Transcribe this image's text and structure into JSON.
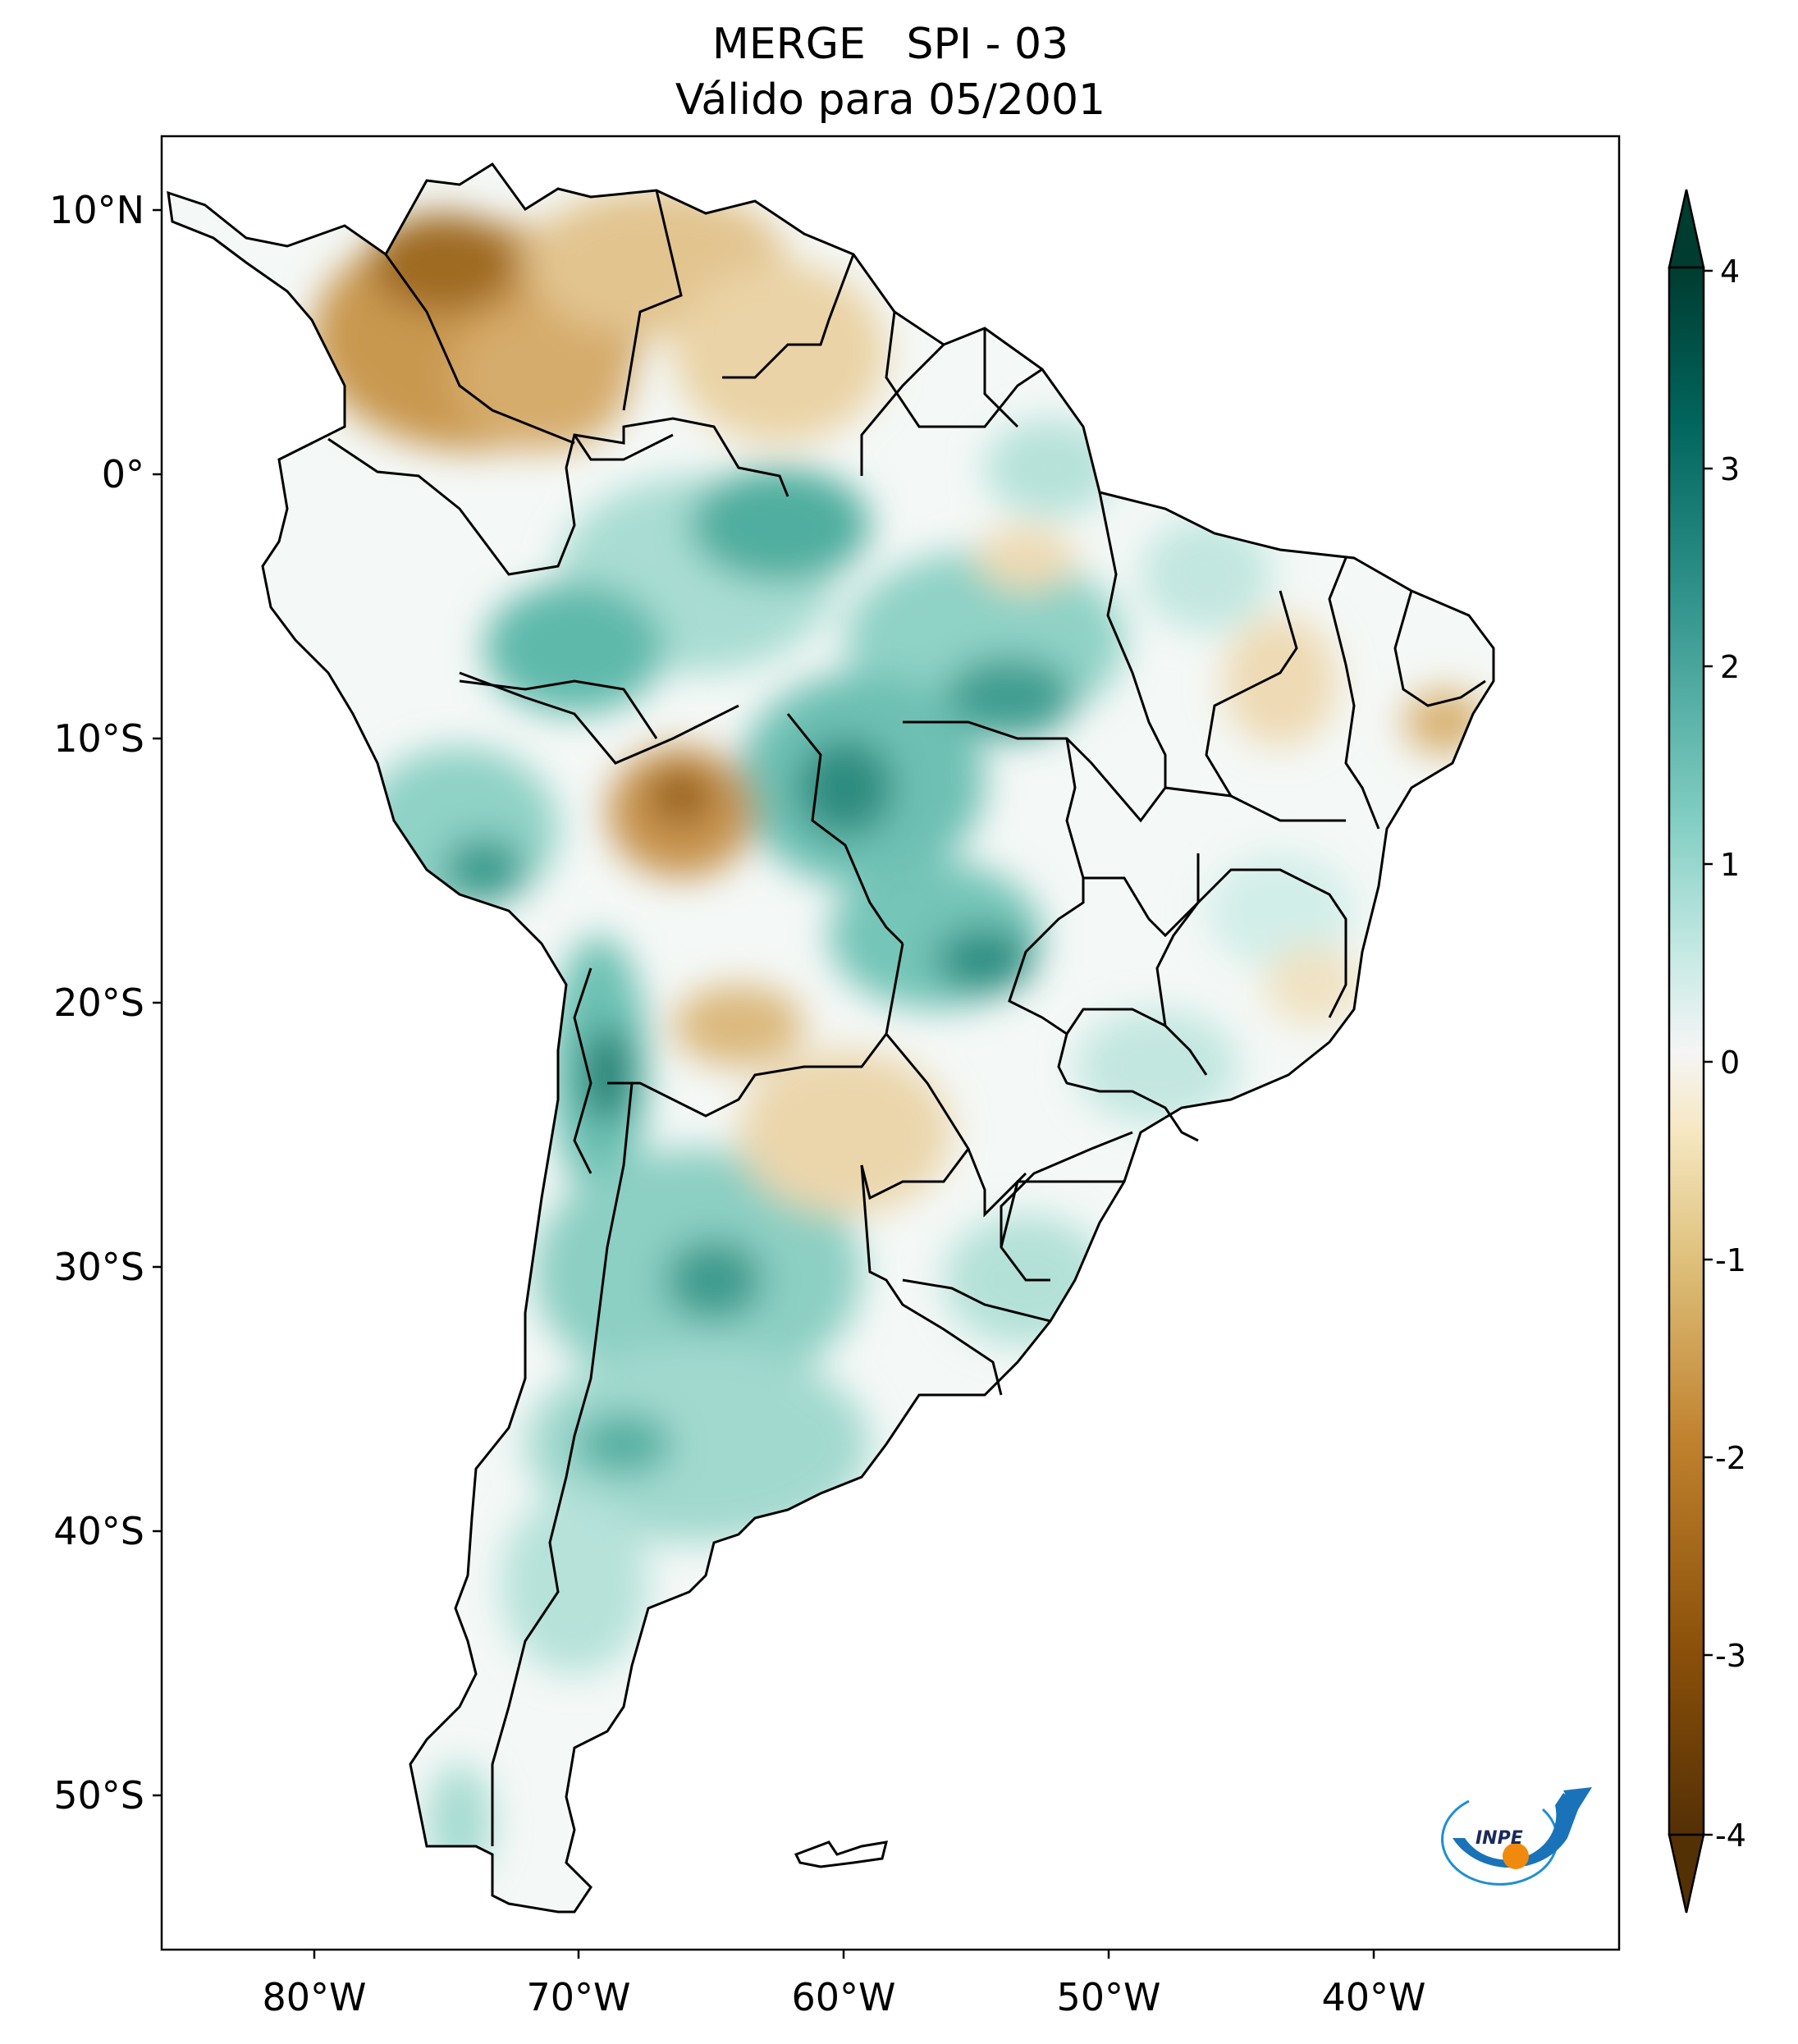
{
  "title": {
    "line1": "MERGE   SPI - 03",
    "line2": "Válido para 05/2001"
  },
  "map": {
    "lat_labels": [
      "10°N",
      "0°",
      "10°S",
      "20°S",
      "30°S",
      "40°S",
      "50°S"
    ],
    "lon_labels": [
      "80°W",
      "70°W",
      "60°W",
      "50°W",
      "40°W"
    ],
    "colors": {
      "dry_strong": "#7a4a10",
      "dry_mid": "#c89a55",
      "dry_light": "#eddcb4",
      "neutral": "#f6f6f4",
      "wet_light": "#d6efe9",
      "wet_mid": "#6fc0b2",
      "wet_strong": "#1b7b70",
      "border": "#000000"
    }
  },
  "colorbar": {
    "tick_labels": [
      "4",
      "3",
      "2",
      "1",
      "0",
      "-1",
      "-2",
      "-3",
      "-4"
    ],
    "min": -4,
    "max": 4
  },
  "logo": {
    "text": "INPE"
  }
}
